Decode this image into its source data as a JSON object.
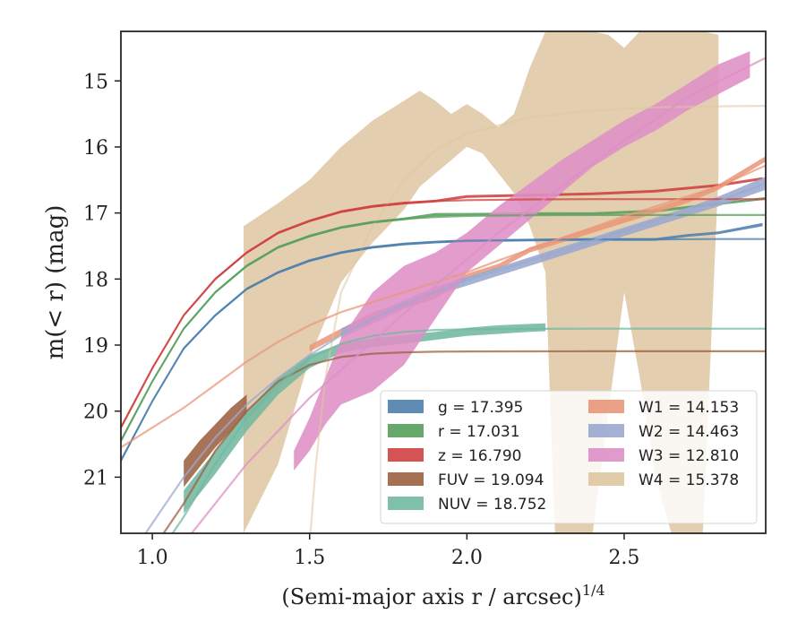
{
  "chart_data": {
    "type": "line",
    "title": "",
    "xlabel": "(Semi-major axis r / arcsec)",
    "xlabel_superscript": "1/4",
    "ylabel": "m(< r) (mag)",
    "xlim": [
      0.9,
      2.95
    ],
    "ylim": [
      21.85,
      14.25
    ],
    "y_inverted": true,
    "x_ticks": [
      1.0,
      1.5,
      2.0,
      2.5
    ],
    "x_tick_labels": [
      "1.0",
      "1.5",
      "2.0",
      "2.5"
    ],
    "y_ticks": [
      15,
      16,
      17,
      18,
      19,
      20,
      21
    ],
    "y_tick_labels": [
      "15",
      "16",
      "17",
      "18",
      "19",
      "20",
      "21"
    ],
    "grid": false,
    "legend_placement": "lower-right",
    "series": [
      {
        "name": "g",
        "legend_label": "g = 17.395",
        "color": "#4c7fad",
        "asymptote": 17.395,
        "model_x": [
          0.9,
          1.0,
          1.1,
          1.2,
          1.3,
          1.4,
          1.5,
          1.6,
          1.7,
          1.8,
          1.9,
          2.0,
          2.2,
          2.4,
          2.6,
          2.8,
          2.95
        ],
        "model_y": [
          20.75,
          19.85,
          19.05,
          18.55,
          18.15,
          17.9,
          17.72,
          17.6,
          17.52,
          17.47,
          17.44,
          17.42,
          17.41,
          17.4,
          17.4,
          17.395,
          17.395
        ],
        "band_x": [
          0.9,
          1.0,
          1.1,
          1.2,
          1.3,
          1.4,
          1.5,
          1.6,
          1.7,
          1.8,
          1.9,
          2.0,
          2.2,
          2.4,
          2.6,
          2.7,
          2.8,
          2.94
        ],
        "band_lower": [
          20.72,
          19.83,
          19.03,
          18.53,
          18.13,
          17.88,
          17.7,
          17.58,
          17.5,
          17.45,
          17.42,
          17.4,
          17.39,
          17.38,
          17.38,
          17.32,
          17.28,
          17.15
        ],
        "band_upper": [
          20.78,
          19.87,
          19.07,
          18.57,
          18.17,
          17.92,
          17.74,
          17.62,
          17.54,
          17.49,
          17.46,
          17.44,
          17.43,
          17.42,
          17.42,
          17.36,
          17.32,
          17.2
        ]
      },
      {
        "name": "r",
        "legend_label": "r = 17.031",
        "color": "#55a05b",
        "asymptote": 17.031,
        "model_x": [
          0.9,
          1.0,
          1.1,
          1.2,
          1.3,
          1.4,
          1.5,
          1.6,
          1.7,
          1.8,
          1.9,
          2.0,
          2.2,
          2.4,
          2.6,
          2.8,
          2.95
        ],
        "model_y": [
          20.45,
          19.55,
          18.75,
          18.2,
          17.8,
          17.52,
          17.35,
          17.22,
          17.14,
          17.09,
          17.06,
          17.045,
          17.035,
          17.031,
          17.031,
          17.031,
          17.031
        ],
        "band_x": [
          0.9,
          1.0,
          1.1,
          1.2,
          1.3,
          1.4,
          1.5,
          1.6,
          1.7,
          1.8,
          1.9,
          2.0,
          2.2,
          2.4,
          2.6,
          2.8,
          2.95
        ],
        "band_lower": [
          20.42,
          19.53,
          18.73,
          18.18,
          17.78,
          17.5,
          17.33,
          17.2,
          17.12,
          17.07,
          17.0,
          17.0,
          16.99,
          16.99,
          16.95,
          16.84,
          16.76
        ],
        "band_upper": [
          20.48,
          19.57,
          18.77,
          18.22,
          17.82,
          17.54,
          17.37,
          17.24,
          17.16,
          17.11,
          17.05,
          17.04,
          17.03,
          17.03,
          16.99,
          16.88,
          16.8
        ]
      },
      {
        "name": "z",
        "legend_label": "z = 16.790",
        "color": "#d0403f",
        "asymptote": 16.79,
        "model_x": [
          0.9,
          1.0,
          1.1,
          1.2,
          1.3,
          1.4,
          1.5,
          1.6,
          1.7,
          1.8,
          1.9,
          2.0,
          2.2,
          2.4,
          2.6,
          2.8,
          2.95
        ],
        "model_y": [
          20.25,
          19.35,
          18.55,
          18.0,
          17.6,
          17.3,
          17.12,
          16.98,
          16.9,
          16.85,
          16.82,
          16.805,
          16.795,
          16.79,
          16.79,
          16.79,
          16.79
        ],
        "band_x": [
          0.9,
          1.0,
          1.1,
          1.2,
          1.3,
          1.4,
          1.5,
          1.6,
          1.7,
          1.8,
          1.9,
          2.0,
          2.2,
          2.4,
          2.6,
          2.8,
          2.94
        ],
        "band_lower": [
          20.22,
          19.33,
          18.53,
          17.98,
          17.58,
          17.28,
          17.1,
          16.96,
          16.88,
          16.83,
          16.8,
          16.73,
          16.71,
          16.69,
          16.65,
          16.56,
          16.46
        ],
        "band_upper": [
          20.28,
          19.37,
          18.57,
          18.02,
          17.62,
          17.32,
          17.14,
          17.0,
          16.92,
          16.87,
          16.84,
          16.77,
          16.75,
          16.73,
          16.69,
          16.6,
          16.5
        ]
      },
      {
        "name": "FUV",
        "legend_label": "FUV = 19.094",
        "color": "#9c6040",
        "asymptote": 19.094,
        "model_x": [
          0.9,
          1.0,
          1.1,
          1.2,
          1.3,
          1.4,
          1.5,
          1.6,
          1.7,
          1.8,
          1.9,
          2.0,
          2.2,
          2.4,
          2.6,
          2.8,
          2.95
        ],
        "model_y": [
          22.8,
          22.1,
          21.4,
          20.6,
          20.0,
          19.55,
          19.3,
          19.18,
          19.13,
          19.11,
          19.1,
          19.097,
          19.095,
          19.094,
          19.094,
          19.094,
          19.094
        ],
        "band_x": [
          1.1,
          1.15,
          1.2,
          1.25,
          1.3
        ],
        "band_lower": [
          21.15,
          20.85,
          20.55,
          20.3,
          20.05
        ],
        "band_upper": [
          20.75,
          20.45,
          20.2,
          19.95,
          19.75
        ]
      },
      {
        "name": "NUV",
        "legend_label": "NUV = 18.752",
        "color": "#72b8a0",
        "asymptote": 18.752,
        "model_x": [
          0.9,
          1.0,
          1.1,
          1.2,
          1.3,
          1.4,
          1.5,
          1.6,
          1.7,
          1.8,
          1.9,
          2.0,
          2.2,
          2.4,
          2.6,
          2.8,
          2.95
        ],
        "model_y": [
          23.0,
          22.3,
          21.6,
          20.8,
          20.1,
          19.6,
          19.2,
          18.98,
          18.86,
          18.8,
          18.77,
          18.76,
          18.755,
          18.752,
          18.752,
          18.752,
          18.752
        ],
        "band_x": [
          1.1,
          1.2,
          1.3,
          1.4,
          1.5,
          1.6,
          1.7,
          1.8,
          1.9,
          2.0,
          2.1,
          2.2,
          2.25
        ],
        "band_lower": [
          21.55,
          20.95,
          20.3,
          19.75,
          19.35,
          19.12,
          19.03,
          18.98,
          18.92,
          18.86,
          18.83,
          18.8,
          18.79
        ],
        "band_upper": [
          21.2,
          20.6,
          20.0,
          19.5,
          19.15,
          18.98,
          18.9,
          18.85,
          18.8,
          18.74,
          18.7,
          18.68,
          18.67
        ]
      },
      {
        "name": "W1",
        "legend_label": "W1 = 14.153",
        "color": "#e9977a",
        "asymptote": 14.153,
        "model_x": [
          0.9,
          1.0,
          1.1,
          1.2,
          1.3,
          1.4,
          1.5,
          1.6,
          1.7,
          1.8,
          1.9,
          2.0,
          2.1,
          2.2,
          2.3,
          2.4,
          2.5,
          2.6,
          2.7,
          2.8,
          2.95
        ],
        "model_y": [
          20.55,
          20.25,
          19.95,
          19.6,
          19.25,
          18.95,
          18.7,
          18.5,
          18.35,
          18.2,
          18.05,
          17.9,
          17.72,
          17.55,
          17.38,
          17.22,
          17.05,
          16.9,
          16.75,
          16.6,
          16.28
        ],
        "band_x": [
          1.5,
          1.6,
          1.7,
          1.8,
          1.9,
          2.0,
          2.1,
          2.2,
          2.3,
          2.4,
          2.5,
          2.6,
          2.7,
          2.8,
          2.95
        ],
        "band_lower": [
          19.1,
          18.85,
          18.6,
          18.45,
          18.3,
          18.0,
          17.85,
          17.6,
          17.45,
          17.3,
          17.15,
          17.0,
          16.85,
          16.65,
          16.22
        ],
        "band_upper": [
          19.0,
          18.75,
          18.5,
          18.35,
          18.2,
          17.92,
          17.77,
          17.52,
          17.37,
          17.22,
          17.07,
          16.92,
          16.77,
          16.57,
          16.14
        ]
      },
      {
        "name": "W2",
        "legend_label": "W2 = 14.463",
        "color": "#9aa9cf",
        "asymptote": 14.463,
        "model_x": [
          0.9,
          1.0,
          1.1,
          1.2,
          1.3,
          1.4,
          1.5,
          1.6,
          1.7,
          1.8,
          1.9,
          2.0,
          2.2,
          2.4,
          2.6,
          2.8,
          2.95
        ],
        "model_y": [
          22.4,
          21.7,
          21.0,
          20.4,
          19.9,
          19.5,
          19.15,
          18.85,
          18.6,
          18.38,
          18.2,
          18.02,
          17.72,
          17.42,
          17.12,
          16.82,
          16.55
        ],
        "band_x": [
          1.6,
          1.7,
          1.8,
          1.9,
          2.0,
          2.1,
          2.2,
          2.3,
          2.4,
          2.5,
          2.6,
          2.7,
          2.8,
          2.95
        ],
        "band_lower": [
          18.9,
          18.68,
          18.45,
          18.25,
          18.1,
          17.95,
          17.8,
          17.65,
          17.5,
          17.35,
          17.2,
          17.05,
          16.9,
          16.65
        ],
        "band_upper": [
          18.75,
          18.55,
          18.32,
          18.12,
          17.97,
          17.82,
          17.67,
          17.52,
          17.37,
          17.22,
          17.07,
          16.92,
          16.75,
          16.45
        ]
      },
      {
        "name": "W3",
        "legend_label": "W3 = 12.810",
        "color": "#de8fc6",
        "asymptote": 12.81,
        "model_x": [
          1.1,
          1.3,
          1.5,
          1.7,
          1.9,
          2.1,
          2.3,
          2.5,
          2.7,
          2.95
        ],
        "model_y": [
          22.0,
          20.8,
          19.8,
          18.95,
          18.1,
          17.3,
          16.6,
          15.9,
          15.25,
          14.65
        ],
        "band_x": [
          1.45,
          1.5,
          1.55,
          1.6,
          1.7,
          1.8,
          1.9,
          2.0,
          2.1,
          2.2,
          2.3,
          2.4,
          2.5,
          2.6,
          2.7,
          2.8,
          2.9
        ],
        "band_lower": [
          20.9,
          20.6,
          20.2,
          19.9,
          19.7,
          19.3,
          18.6,
          17.9,
          17.5,
          17.1,
          16.7,
          16.3,
          16.0,
          15.75,
          15.45,
          15.2,
          14.95
        ],
        "band_upper": [
          20.6,
          20.1,
          19.5,
          18.9,
          18.2,
          17.8,
          17.6,
          17.3,
          16.9,
          16.55,
          16.2,
          15.9,
          15.6,
          15.35,
          15.05,
          14.75,
          14.55
        ]
      },
      {
        "name": "W4",
        "legend_label": "W4 = 15.378",
        "color": "#dec6a1",
        "asymptote": 15.378,
        "model_x": [
          1.5,
          1.52,
          1.55,
          1.6,
          1.7,
          1.8,
          1.9,
          2.0,
          2.2,
          2.4,
          2.6,
          2.8,
          2.95
        ],
        "model_y": [
          22.0,
          20.8,
          19.5,
          18.2,
          17.2,
          16.5,
          16.05,
          15.8,
          15.55,
          15.45,
          15.4,
          15.385,
          15.378
        ],
        "band_x": [
          1.29,
          1.4,
          1.5,
          1.6,
          1.7,
          1.8,
          1.85,
          1.9,
          1.95,
          2.0,
          2.05,
          2.1,
          2.15,
          2.2,
          2.25,
          2.28,
          2.3,
          2.35,
          2.4,
          2.45,
          2.5,
          2.55,
          2.6,
          2.65,
          2.7,
          2.75,
          2.8
        ],
        "band_lower": [
          21.85,
          20.8,
          19.2,
          18.05,
          17.45,
          16.95,
          16.6,
          16.4,
          16.2,
          16.0,
          16.1,
          16.4,
          16.7,
          17.2,
          17.9,
          21.85,
          21.85,
          21.85,
          21.85,
          20.0,
          18.2,
          19.5,
          21.0,
          21.85,
          21.85,
          21.85,
          16.4
        ],
        "band_upper": [
          17.2,
          16.85,
          16.5,
          16.0,
          15.6,
          15.3,
          15.15,
          15.3,
          15.5,
          15.35,
          15.5,
          15.7,
          15.5,
          14.8,
          14.25,
          14.25,
          14.25,
          14.25,
          14.25,
          14.3,
          14.5,
          14.25,
          14.25,
          14.25,
          14.25,
          14.25,
          14.3
        ]
      }
    ]
  }
}
